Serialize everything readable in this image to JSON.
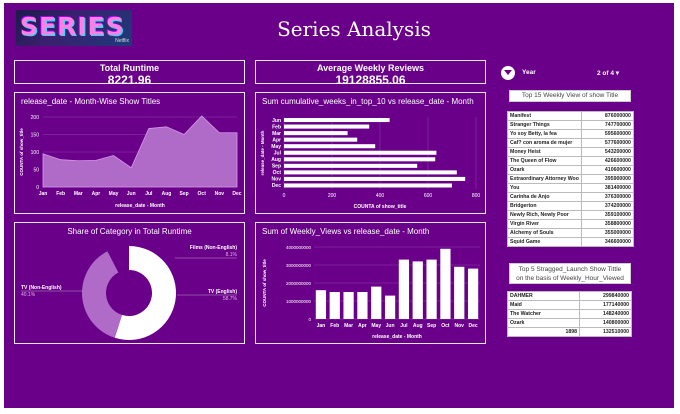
{
  "header": {
    "logo_text": "SERIES",
    "logo_subtext": "Netflix",
    "title": "Series Analysis"
  },
  "kpis": {
    "runtime_label": "Total Runtime",
    "runtime_value": "8221.96",
    "reviews_label": "Average Weekly Reviews",
    "reviews_value": "19128855.06"
  },
  "filter": {
    "label": "Year",
    "pager": "2 of 4 ▾"
  },
  "area_chart": {
    "title": "release_date - Month-Wise Show Titles",
    "xlabel": "release_date - Month",
    "ylabel": "COUNTA of show_title",
    "ticks": [
      "0",
      "50",
      "100",
      "150",
      "200"
    ]
  },
  "bar_h_chart": {
    "title": "Sum cumulative_weeks_in_top_10 vs release_date - Month",
    "xlabel": "COUNTA of show_title",
    "ylabel": "release_date - Month",
    "ticks": [
      "0",
      "200",
      "400",
      "600",
      "800"
    ]
  },
  "donut_chart": {
    "title": "Share of Category in Total Runtime",
    "label_films": "Films (Non-English)",
    "pct_films": "8.1%",
    "label_tv_non": "TV (Non-English)",
    "pct_tv_non": "40.1%",
    "label_tv": "TV (English)",
    "pct_tv": "58.7%"
  },
  "col_chart": {
    "title": "Sum of Weekly_Views vs release_date - Month",
    "xlabel": "release_date - Month",
    "ylabel": "COUNTA of show_title",
    "ticks": [
      "0",
      "1000000000",
      "2000000000",
      "3000000000",
      "4000000000"
    ]
  },
  "top15": {
    "title": "Top 15 Weekly View of show Title",
    "rows": [
      {
        "name": "Manifest",
        "value": "876000000"
      },
      {
        "name": "Stranger Things",
        "value": "747700000"
      },
      {
        "name": "Yo soy Betty, la fea",
        "value": "595600000"
      },
      {
        "name": "Caf? con aroma de mujer",
        "value": "577600000"
      },
      {
        "name": "Money Heist",
        "value": "543200000"
      },
      {
        "name": "The Queen of Flow",
        "value": "426600000"
      },
      {
        "name": "Ozark",
        "value": "410600000"
      },
      {
        "name": "Extraordinary Attorney Woo",
        "value": "395900000"
      },
      {
        "name": "You",
        "value": "381400000"
      },
      {
        "name": "Carinha de Anjo",
        "value": "376300000"
      },
      {
        "name": "Bridgerton",
        "value": "374200000"
      },
      {
        "name": "Newly Rich, Newly Poor",
        "value": "359100000"
      },
      {
        "name": "Virgin River",
        "value": "358800000"
      },
      {
        "name": "Alchemy of Souls",
        "value": "355000000"
      },
      {
        "name": "Squid Game",
        "value": "346600000"
      }
    ]
  },
  "top5": {
    "title_line1": "Top 5 Stragged_Launch Show Tittle",
    "title_line2": "on the basis of Weekly_Hour_Viewed",
    "rows": [
      {
        "name": "DAHMER",
        "value": "299840000"
      },
      {
        "name": "Maid",
        "value": "177140000"
      },
      {
        "name": "The Watcher",
        "value": "148240000"
      },
      {
        "name": "Ozark",
        "value": "140800000"
      },
      {
        "name": "1898",
        "value": "132510000"
      }
    ]
  },
  "chart_data": [
    {
      "type": "area",
      "title": "release_date - Month-Wise Show Titles",
      "xlabel": "release_date - Month",
      "ylabel": "COUNTA of show_title",
      "categories": [
        "Jan",
        "Feb",
        "Mar",
        "Apr",
        "May",
        "Jun",
        "Jul",
        "Aug",
        "Sep",
        "Oct",
        "Nov",
        "Dec"
      ],
      "values": [
        95,
        78,
        75,
        76,
        90,
        55,
        167,
        172,
        150,
        203,
        155,
        155
      ],
      "ylim": [
        0,
        200
      ],
      "color": "#b06ac8"
    },
    {
      "type": "bar",
      "orientation": "horizontal",
      "title": "Sum cumulative_weeks_in_top_10 vs release_date - Month",
      "xlabel": "COUNTA of show_title",
      "ylabel": "release_date - Month",
      "categories": [
        "Jun",
        "Feb",
        "Mar",
        "Apr",
        "May",
        "Jul",
        "Aug",
        "Sep",
        "Oct",
        "Nov",
        "Dec"
      ],
      "values": [
        440,
        355,
        265,
        305,
        380,
        635,
        630,
        555,
        720,
        755,
        700
      ],
      "xlim": [
        0,
        800
      ],
      "color": "#ffffff"
    },
    {
      "type": "pie",
      "title": "Share of Category in Total Runtime",
      "labels": [
        "TV (English)",
        "TV (Non-English)",
        "Films (Non-English)"
      ],
      "values": [
        58.7,
        40.1,
        8.1
      ],
      "colors": [
        "#ffffff",
        "#b06ac8",
        "#6a008a"
      ]
    },
    {
      "type": "bar",
      "title": "Sum of Weekly_Views vs release_date - Month",
      "xlabel": "release_date - Month",
      "ylabel": "COUNTA of show_title",
      "categories": [
        "Jan",
        "Feb",
        "Mar",
        "Apr",
        "May",
        "Jun",
        "Jul",
        "Aug",
        "Sep",
        "Oct",
        "Nov",
        "Dec"
      ],
      "values": [
        1600000000,
        1500000000,
        1500000000,
        1500000000,
        1800000000,
        1300000000,
        3300000000,
        3200000000,
        3300000000,
        3900000000,
        2900000000,
        2800000000
      ],
      "ylim": [
        0,
        4000000000
      ],
      "color": "#ffffff"
    }
  ]
}
